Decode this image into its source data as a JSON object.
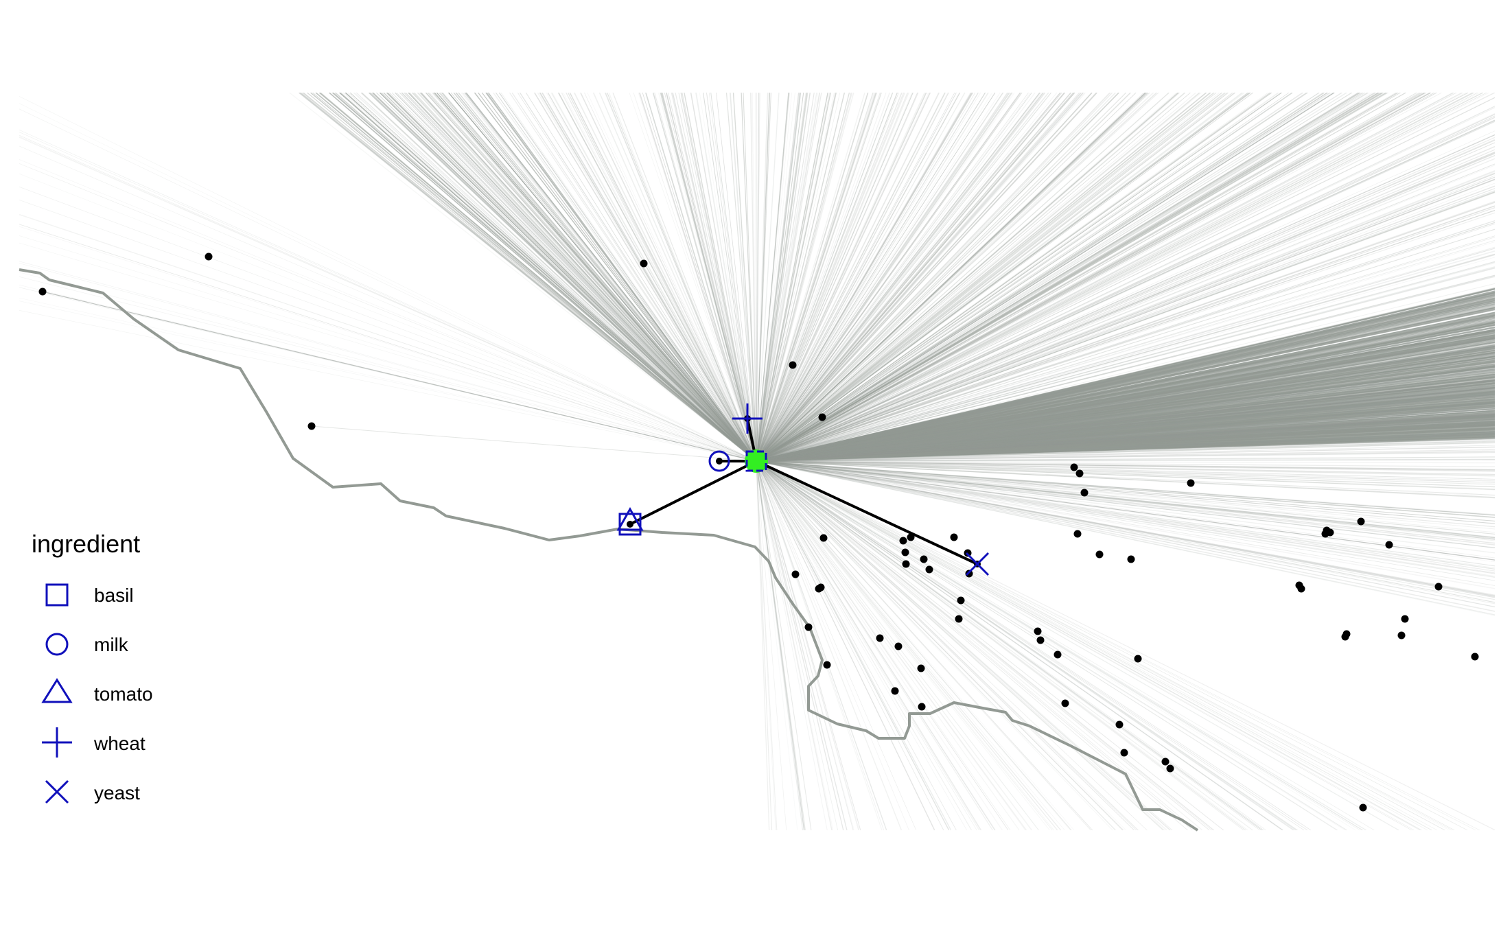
{
  "legend": {
    "title": "ingredient",
    "items": [
      {
        "label": "basil",
        "shape": "square"
      },
      {
        "label": "milk",
        "shape": "circle"
      },
      {
        "label": "tomato",
        "shape": "triangle"
      },
      {
        "label": "wheat",
        "shape": "plus"
      },
      {
        "label": "yeast",
        "shape": "cross"
      }
    ]
  },
  "colors": {
    "source_lines": "#939a94",
    "coastline": "#939a94",
    "supply_links": "#000000",
    "ingredient_markers": "#1010bb",
    "hub": "#33ee22",
    "points": "#000000"
  }
}
